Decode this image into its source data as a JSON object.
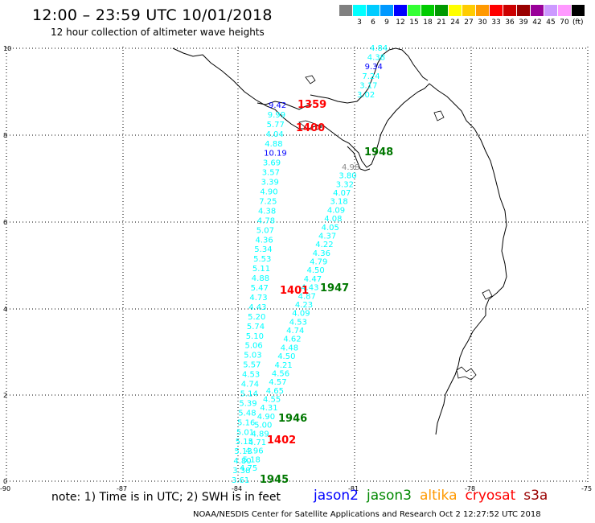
{
  "header": {
    "title": "12:00 – 23:59 UTC 10/01/2018",
    "subtitle": "12 hour collection of altimeter wave heights"
  },
  "color_scale": {
    "unit": "(ft)",
    "swatches": [
      {
        "label": "",
        "color": "#808080"
      },
      {
        "label": "3",
        "color": "#00ffff"
      },
      {
        "label": "6",
        "color": "#00ccff"
      },
      {
        "label": "9",
        "color": "#0099ff"
      },
      {
        "label": "12",
        "color": "#0000ff"
      },
      {
        "label": "15",
        "color": "#33ff33"
      },
      {
        "label": "18",
        "color": "#00cc00"
      },
      {
        "label": "21",
        "color": "#009900"
      },
      {
        "label": "24",
        "color": "#ffff00"
      },
      {
        "label": "27",
        "color": "#ffcc00"
      },
      {
        "label": "30",
        "color": "#ff9900"
      },
      {
        "label": "33",
        "color": "#ff0000"
      },
      {
        "label": "36",
        "color": "#cc0000"
      },
      {
        "label": "39",
        "color": "#990000"
      },
      {
        "label": "42",
        "color": "#990099"
      },
      {
        "label": "45",
        "color": "#cc99ff"
      },
      {
        "label": "70",
        "color": "#ff99ff"
      },
      {
        "label": "",
        "color": "#000000"
      }
    ]
  },
  "axes": {
    "lon_labels": [
      "-90",
      "-87",
      "-84",
      "-81",
      "-78",
      "-75"
    ],
    "lat_labels": [
      "0",
      "2",
      "4",
      "6",
      "8",
      "10"
    ]
  },
  "track_a": [
    {
      "v": "9.42",
      "c": "b2"
    },
    {
      "v": "9.99",
      "c": "b"
    },
    {
      "v": "5.77",
      "c": "b"
    },
    {
      "v": "4.04",
      "c": "b"
    },
    {
      "v": "4.88",
      "c": "b"
    },
    {
      "v": "10.19",
      "c": "b2"
    },
    {
      "v": "3.69",
      "c": "b"
    },
    {
      "v": "3.57",
      "c": "b"
    },
    {
      "v": "3.39",
      "c": "b"
    },
    {
      "v": "4.90",
      "c": "b"
    },
    {
      "v": "7.25",
      "c": "b"
    },
    {
      "v": "4.38",
      "c": "b"
    },
    {
      "v": "4.78",
      "c": "b"
    },
    {
      "v": "5.07",
      "c": "b"
    },
    {
      "v": "4.36",
      "c": "b"
    },
    {
      "v": "5.34",
      "c": "b"
    },
    {
      "v": "5.53",
      "c": "b"
    },
    {
      "v": "5.11",
      "c": "b"
    },
    {
      "v": "4.88",
      "c": "b"
    },
    {
      "v": "5.47",
      "c": "b"
    },
    {
      "v": "4.73",
      "c": "b"
    },
    {
      "v": "4.43",
      "c": "b"
    },
    {
      "v": "5.20",
      "c": "b"
    },
    {
      "v": "5.74",
      "c": "b"
    },
    {
      "v": "5.10",
      "c": "b"
    },
    {
      "v": "5.06",
      "c": "b"
    },
    {
      "v": "5.03",
      "c": "b"
    },
    {
      "v": "5.57",
      "c": "b"
    },
    {
      "v": "4.53",
      "c": "b"
    },
    {
      "v": "4.74",
      "c": "b"
    },
    {
      "v": "5.14",
      "c": "b"
    },
    {
      "v": "5.39",
      "c": "b"
    },
    {
      "v": "5.48",
      "c": "b"
    },
    {
      "v": "5.16",
      "c": "b"
    },
    {
      "v": "5.01",
      "c": "b"
    },
    {
      "v": "5.15",
      "c": "b"
    },
    {
      "v": "5.13",
      "c": "b"
    },
    {
      "v": "4.80",
      "c": "b"
    },
    {
      "v": "3.38",
      "c": "b"
    },
    {
      "v": "3.61",
      "c": "b"
    }
  ],
  "track_b": [
    {
      "v": "4.84",
      "c": "b"
    },
    {
      "v": "4.38",
      "c": "b"
    },
    {
      "v": "9.34",
      "c": "b2"
    },
    {
      "v": "7.24",
      "c": "b"
    },
    {
      "v": "3.17",
      "c": "b"
    },
    {
      "v": "3.02",
      "c": "b"
    }
  ],
  "track_c": [
    {
      "v": "4.98",
      "c": "g"
    },
    {
      "v": "3.80",
      "c": "b"
    },
    {
      "v": "3.32",
      "c": "b"
    },
    {
      "v": "4.07",
      "c": "b"
    },
    {
      "v": "3.18",
      "c": "b"
    },
    {
      "v": "4.09",
      "c": "b"
    },
    {
      "v": "4.08",
      "c": "b"
    },
    {
      "v": "4.05",
      "c": "b"
    },
    {
      "v": "4.37",
      "c": "b"
    },
    {
      "v": "4.22",
      "c": "b"
    },
    {
      "v": "4.36",
      "c": "b"
    },
    {
      "v": "4.79",
      "c": "b"
    },
    {
      "v": "4.50",
      "c": "b"
    },
    {
      "v": "4.47",
      "c": "b"
    },
    {
      "v": "4.43",
      "c": "b"
    },
    {
      "v": "4.87",
      "c": "b"
    },
    {
      "v": "4.23",
      "c": "b"
    },
    {
      "v": "4.09",
      "c": "b"
    },
    {
      "v": "4.53",
      "c": "b"
    },
    {
      "v": "4.74",
      "c": "b"
    },
    {
      "v": "4.62",
      "c": "b"
    },
    {
      "v": "4.48",
      "c": "b"
    },
    {
      "v": "4.50",
      "c": "b"
    },
    {
      "v": "4.21",
      "c": "b"
    },
    {
      "v": "4.56",
      "c": "b"
    },
    {
      "v": "4.57",
      "c": "b"
    },
    {
      "v": "4.65",
      "c": "b"
    },
    {
      "v": "4.55",
      "c": "b"
    },
    {
      "v": "4.31",
      "c": "b"
    },
    {
      "v": "4.90",
      "c": "b"
    },
    {
      "v": "5.00",
      "c": "b"
    },
    {
      "v": "4.89",
      "c": "b"
    },
    {
      "v": "4.71",
      "c": "b"
    },
    {
      "v": "4.96",
      "c": "b"
    },
    {
      "v": "5.18",
      "c": "b"
    },
    {
      "v": "4.75",
      "c": "b"
    }
  ],
  "time_labels": [
    {
      "t": "1359",
      "c": "r"
    },
    {
      "t": "1400",
      "c": "r"
    },
    {
      "t": "1948",
      "c": "g"
    },
    {
      "t": "1401",
      "c": "r"
    },
    {
      "t": "1947",
      "c": "g"
    },
    {
      "t": "1946",
      "c": "g"
    },
    {
      "t": "1402",
      "c": "r"
    },
    {
      "t": "1945",
      "c": "g"
    }
  ],
  "note": "note: 1) Time is in UTC; 2) SWH is in feet",
  "legend": [
    {
      "name": "jason2",
      "color": "#0000ff"
    },
    {
      "name": "jason3",
      "color": "#008800"
    },
    {
      "name": "altika",
      "color": "#ff9900"
    },
    {
      "name": "cryosat",
      "color": "#ff0000"
    },
    {
      "name": "s3a",
      "color": "#990000"
    }
  ],
  "footer": "NOAA/NESDIS Center for Satellite Applications and Research   Oct  2 12:27:52 UTC 2018"
}
